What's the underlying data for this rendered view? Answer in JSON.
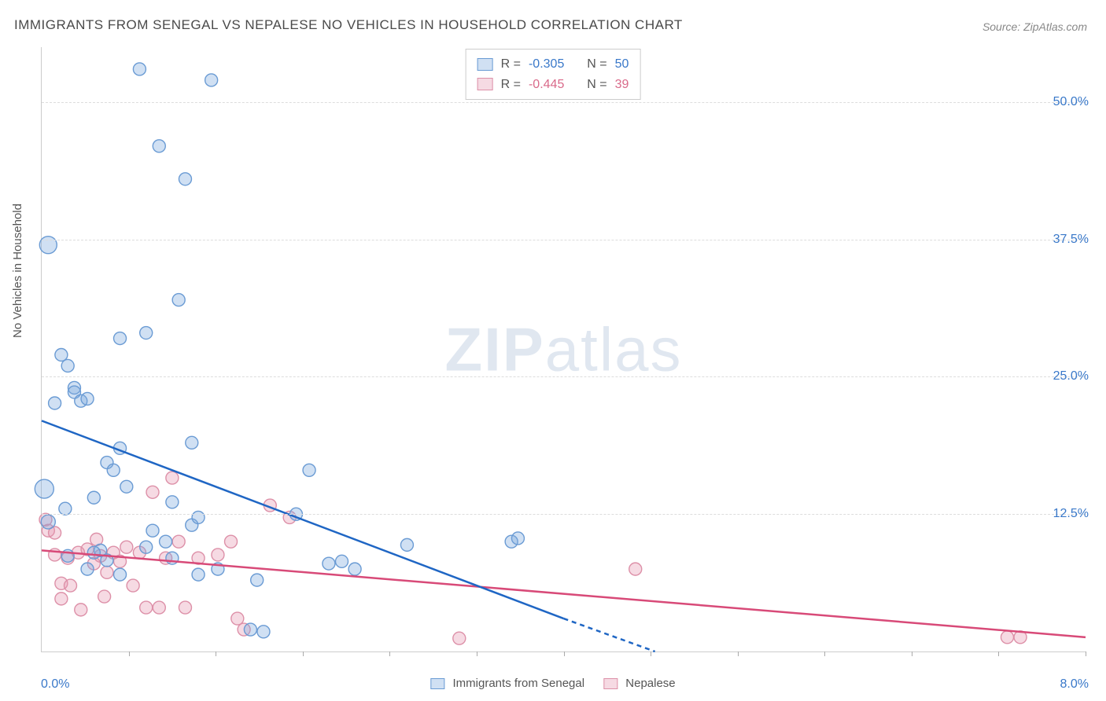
{
  "title": "IMMIGRANTS FROM SENEGAL VS NEPALESE NO VEHICLES IN HOUSEHOLD CORRELATION CHART",
  "source_label": "Source:",
  "source_value": "ZipAtlas.com",
  "watermark_a": "ZIP",
  "watermark_b": "atlas",
  "y_axis_label": "No Vehicles in Household",
  "chart": {
    "type": "scatter",
    "xlim": [
      0.0,
      8.0
    ],
    "ylim": [
      0.0,
      55.0
    ],
    "x_min_label": "0.0%",
    "x_max_label": "8.0%",
    "y_ticks": [
      12.5,
      25.0,
      37.5,
      50.0
    ],
    "y_tick_labels": [
      "12.5%",
      "25.0%",
      "37.5%",
      "50.0%"
    ],
    "x_ticks": [
      0.667,
      1.333,
      2.0,
      2.667,
      3.333,
      4.0,
      4.667,
      5.333,
      6.0,
      6.667,
      7.333,
      8.0
    ],
    "background_color": "#ffffff",
    "grid_color": "#dddddd",
    "axis_color": "#cccccc",
    "tick_label_color": "#3978c9",
    "marker_radius": 8,
    "marker_stroke_width": 1.4,
    "line_width": 2.5
  },
  "series": {
    "senegal": {
      "label": "Immigrants from Senegal",
      "fill": "rgba(120,165,220,0.35)",
      "stroke": "#6a9bd4",
      "trend_color": "#1f66c4",
      "R": "-0.305",
      "N": "50",
      "trend": {
        "x1": 0.0,
        "y1": 21.0,
        "x2": 4.0,
        "y2": 3.0
      },
      "trend_dash": {
        "x1": 4.0,
        "y1": 3.0,
        "x2": 4.7,
        "y2": 0.0
      },
      "points": [
        [
          0.05,
          37.0,
          11
        ],
        [
          0.02,
          14.8,
          12
        ],
        [
          0.05,
          11.8,
          9
        ],
        [
          0.1,
          22.6,
          8
        ],
        [
          0.15,
          27.0,
          8
        ],
        [
          0.2,
          26.0,
          8
        ],
        [
          0.25,
          24.0,
          8
        ],
        [
          0.25,
          23.6,
          8
        ],
        [
          0.3,
          22.8,
          8
        ],
        [
          0.35,
          23.0,
          8
        ],
        [
          0.18,
          13.0,
          8
        ],
        [
          0.2,
          8.7,
          8
        ],
        [
          0.35,
          7.5,
          8
        ],
        [
          0.4,
          14.0,
          8
        ],
        [
          0.45,
          9.2,
          8
        ],
        [
          0.5,
          8.3,
          8
        ],
        [
          0.5,
          17.2,
          8
        ],
        [
          0.55,
          16.5,
          8
        ],
        [
          0.6,
          18.5,
          8
        ],
        [
          0.6,
          28.5,
          8
        ],
        [
          0.75,
          53.0,
          8
        ],
        [
          0.8,
          29.0,
          8
        ],
        [
          0.85,
          11.0,
          8
        ],
        [
          0.9,
          46.0,
          8
        ],
        [
          0.95,
          10.0,
          8
        ],
        [
          1.0,
          8.5,
          8
        ],
        [
          1.0,
          13.6,
          8
        ],
        [
          1.05,
          32.0,
          8
        ],
        [
          1.1,
          43.0,
          8
        ],
        [
          1.15,
          19.0,
          8
        ],
        [
          1.15,
          11.5,
          8
        ],
        [
          1.2,
          7.0,
          8
        ],
        [
          1.2,
          12.2,
          8
        ],
        [
          1.3,
          52.0,
          8
        ],
        [
          1.35,
          7.5,
          8
        ],
        [
          1.6,
          2.0,
          8
        ],
        [
          1.65,
          6.5,
          8
        ],
        [
          1.7,
          1.8,
          8
        ],
        [
          1.95,
          12.5,
          8
        ],
        [
          2.05,
          16.5,
          8
        ],
        [
          2.2,
          8.0,
          8
        ],
        [
          2.3,
          8.2,
          8
        ],
        [
          2.4,
          7.5,
          8
        ],
        [
          2.8,
          9.7,
          8
        ],
        [
          3.6,
          10.0,
          8
        ],
        [
          3.65,
          10.3,
          8
        ],
        [
          0.6,
          7.0,
          8
        ],
        [
          0.8,
          9.5,
          8
        ],
        [
          0.65,
          15.0,
          8
        ],
        [
          0.4,
          9.0,
          8
        ]
      ]
    },
    "nepalese": {
      "label": "Nepalese",
      "fill": "rgba(230,150,175,0.35)",
      "stroke": "#dd90a8",
      "trend_color": "#d84a78",
      "R": "-0.445",
      "N": "39",
      "trend": {
        "x1": 0.0,
        "y1": 9.2,
        "x2": 8.0,
        "y2": 1.3
      },
      "points": [
        [
          0.03,
          12.0,
          8
        ],
        [
          0.05,
          11.0,
          8
        ],
        [
          0.1,
          10.8,
          8
        ],
        [
          0.1,
          8.8,
          8
        ],
        [
          0.15,
          6.2,
          8
        ],
        [
          0.15,
          4.8,
          8
        ],
        [
          0.2,
          8.5,
          8
        ],
        [
          0.22,
          6.0,
          8
        ],
        [
          0.28,
          9.0,
          8
        ],
        [
          0.3,
          3.8,
          8
        ],
        [
          0.35,
          9.3,
          8
        ],
        [
          0.4,
          8.0,
          8
        ],
        [
          0.42,
          10.2,
          8
        ],
        [
          0.45,
          8.7,
          8
        ],
        [
          0.48,
          5.0,
          8
        ],
        [
          0.55,
          9.0,
          8
        ],
        [
          0.6,
          8.2,
          8
        ],
        [
          0.65,
          9.5,
          8
        ],
        [
          0.7,
          6.0,
          8
        ],
        [
          0.75,
          9.0,
          8
        ],
        [
          0.8,
          4.0,
          8
        ],
        [
          0.85,
          14.5,
          8
        ],
        [
          0.9,
          4.0,
          8
        ],
        [
          0.95,
          8.5,
          8
        ],
        [
          1.0,
          15.8,
          8
        ],
        [
          1.05,
          10.0,
          8
        ],
        [
          1.1,
          4.0,
          8
        ],
        [
          1.2,
          8.5,
          8
        ],
        [
          1.35,
          8.8,
          8
        ],
        [
          1.45,
          10.0,
          8
        ],
        [
          1.5,
          3.0,
          8
        ],
        [
          1.55,
          2.0,
          8
        ],
        [
          1.75,
          13.3,
          8
        ],
        [
          1.9,
          12.2,
          8
        ],
        [
          3.2,
          1.2,
          8
        ],
        [
          4.55,
          7.5,
          8
        ],
        [
          7.4,
          1.3,
          8
        ],
        [
          7.5,
          1.3,
          8
        ],
        [
          0.5,
          7.2,
          8
        ]
      ]
    }
  },
  "stats_labels": {
    "R": "R =",
    "N": "N ="
  }
}
